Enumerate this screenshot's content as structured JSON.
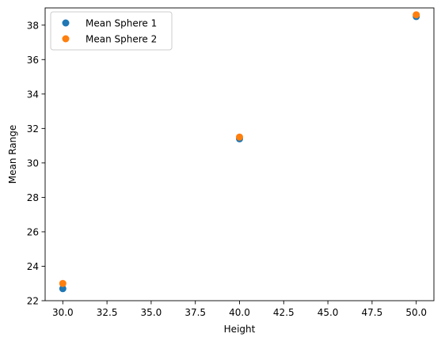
{
  "chart_data": {
    "type": "scatter",
    "title": "",
    "xlabel": "Height",
    "ylabel": "Mean Range",
    "xlim": [
      29.0,
      51.0
    ],
    "ylim": [
      22.0,
      39.0
    ],
    "grid": false,
    "legend_position": "top-left",
    "x_ticks": [
      30.0,
      32.5,
      35.0,
      37.5,
      40.0,
      42.5,
      45.0,
      47.5,
      50.0
    ],
    "x_tick_labels": [
      "30.0",
      "32.5",
      "35.0",
      "37.5",
      "40.0",
      "42.5",
      "45.0",
      "47.5",
      "50.0"
    ],
    "y_ticks": [
      22,
      24,
      26,
      28,
      30,
      32,
      34,
      36,
      38
    ],
    "y_tick_labels": [
      "22",
      "24",
      "26",
      "28",
      "30",
      "32",
      "34",
      "36",
      "38"
    ],
    "series": [
      {
        "name": "Mean Sphere 1",
        "color": "#1f77b4",
        "points": [
          {
            "x": 30,
            "y": 22.7
          },
          {
            "x": 40,
            "y": 31.4
          },
          {
            "x": 50,
            "y": 38.5
          }
        ]
      },
      {
        "name": "Mean Sphere 2",
        "color": "#ff7f0e",
        "points": [
          {
            "x": 30,
            "y": 23.0
          },
          {
            "x": 40,
            "y": 31.5
          },
          {
            "x": 50,
            "y": 38.6
          }
        ]
      }
    ]
  }
}
